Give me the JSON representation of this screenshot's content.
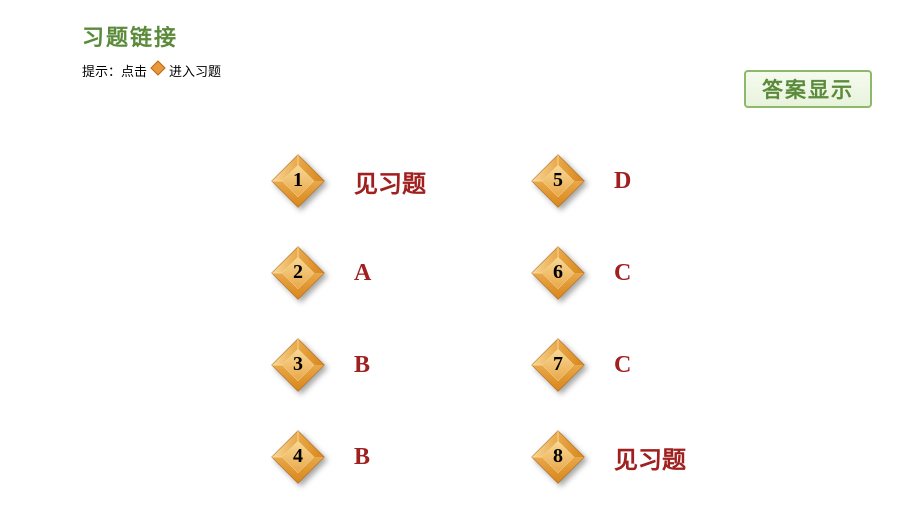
{
  "header": {
    "title": "习题链接",
    "title_color": "#5a8a3a",
    "hint_prefix": "提示：点击",
    "hint_suffix": " 进入习题",
    "answer_button": "答案显示",
    "answer_button_color": "#5a8a3a"
  },
  "diamond_style": {
    "outer_fill": "#e8a84a",
    "outer_stroke": "#a8641a",
    "inner_light": "#f8d896",
    "inner_dark": "#d8861a",
    "border_hi": "#f8d896"
  },
  "small_diamond": {
    "fill": "#e89838",
    "stroke": "#b86818"
  },
  "answer_color": "#a02020",
  "items": [
    {
      "num": "1",
      "answer": "见习题"
    },
    {
      "num": "2",
      "answer": "A"
    },
    {
      "num": "3",
      "answer": "B"
    },
    {
      "num": "4",
      "answer": "B"
    },
    {
      "num": "5",
      "answer": "D"
    },
    {
      "num": "6",
      "answer": "C"
    },
    {
      "num": "7",
      "answer": "C"
    },
    {
      "num": "8",
      "answer": "见习题"
    }
  ]
}
